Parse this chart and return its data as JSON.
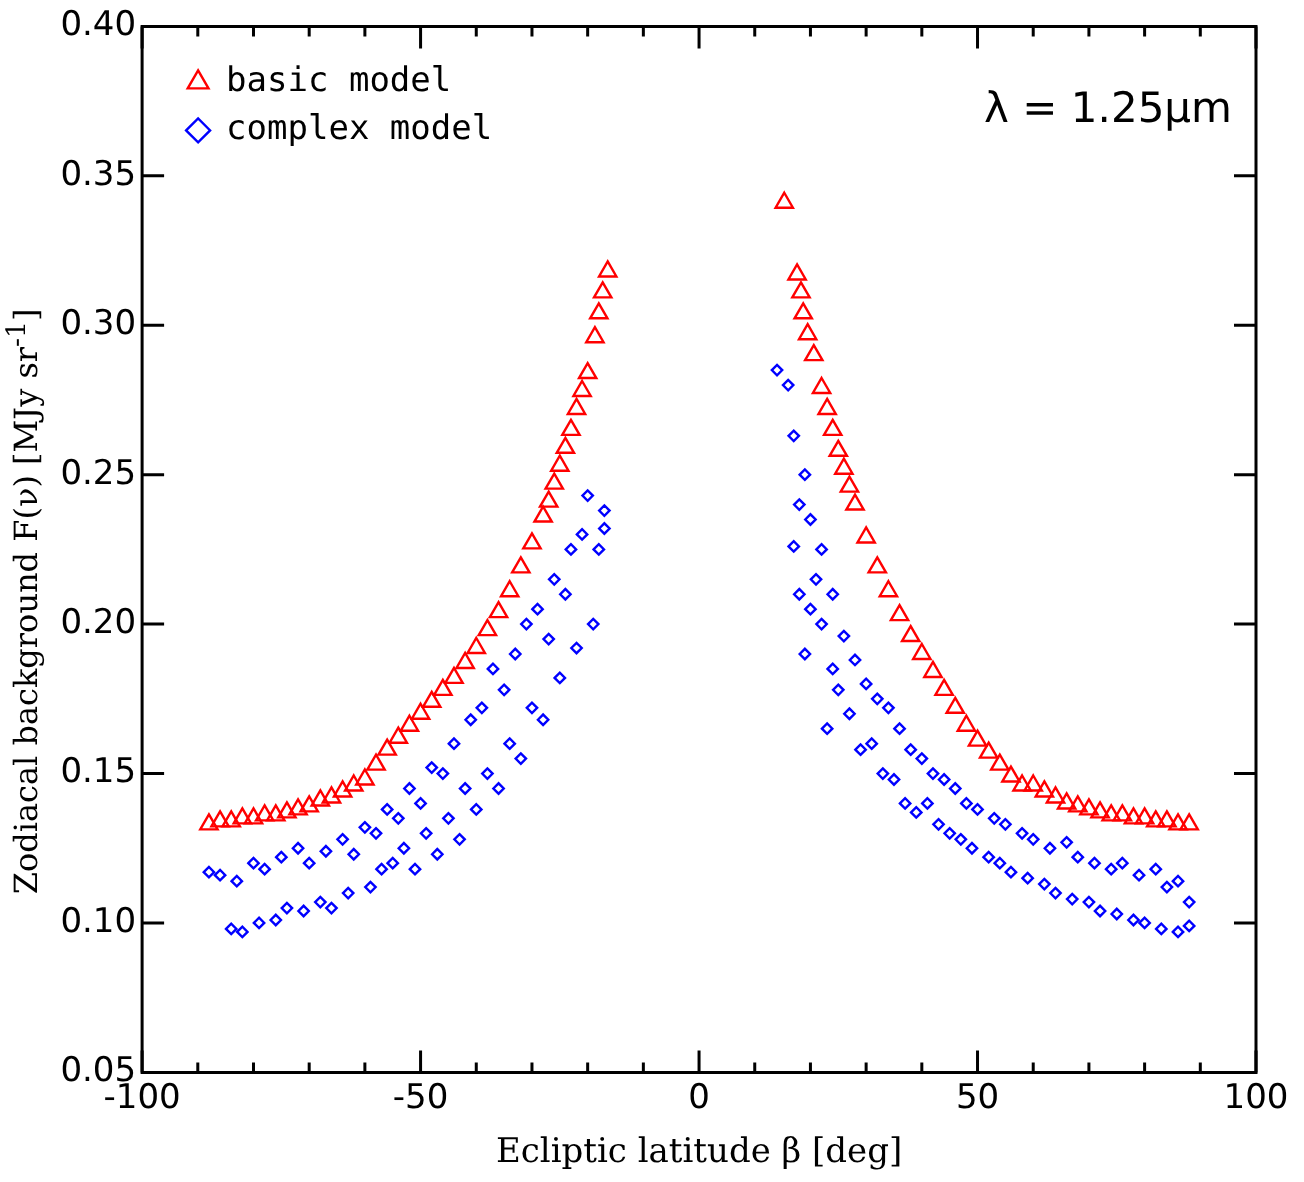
{
  "chart_data": {
    "type": "scatter",
    "xlabel": "Ecliptic latitude β [deg]",
    "ylabel": "Zodiacal background F(ν) [MJy sr$^{-1}$]",
    "xlim": [
      -100,
      100
    ],
    "xticks": [
      -100,
      -50,
      0,
      50,
      100
    ],
    "ylim": [
      0.05,
      0.4
    ],
    "yticks": [
      0.05,
      {
        "value": 0.1,
        "label": "0.10"
      },
      0.15,
      {
        "value": 0.2,
        "label": "0.20"
      },
      0.25,
      {
        "value": 0.3,
        "label": "0.30"
      },
      0.35,
      {
        "value": 0.4,
        "label": "0.40"
      }
    ],
    "legend": "top left",
    "grid": false,
    "annotations": [
      "λ = 1.25μm"
    ],
    "series": [
      {
        "name": "basic model",
        "color": "#ff0000",
        "marker": "triangle",
        "x": [
          -88,
          -86,
          -84,
          -82,
          -80,
          -78,
          -76,
          -74,
          -72,
          -70,
          -68,
          -66,
          -64,
          -62,
          -60,
          -58,
          -56,
          -54,
          -52,
          -50,
          -48,
          -46,
          -44,
          -42,
          -40,
          -38,
          -36,
          -34,
          -32,
          -30,
          -28,
          -27,
          -26,
          -25,
          -24,
          -23,
          -22,
          -21,
          -20,
          -18.7,
          -18,
          -17.3,
          -16.4,
          15.3,
          17.6,
          18.3,
          18.7,
          19.5,
          20.6,
          22,
          23,
          24,
          25,
          26,
          27,
          28,
          30,
          32,
          34,
          36,
          38,
          40,
          42,
          44,
          46,
          48,
          50,
          52,
          54,
          56,
          58,
          60,
          62,
          64,
          66,
          68,
          70,
          72,
          74,
          76,
          78,
          80,
          82,
          84,
          86,
          88
        ],
        "values": [
          0.133,
          0.134,
          0.134,
          0.135,
          0.135,
          0.136,
          0.136,
          0.137,
          0.138,
          0.139,
          0.141,
          0.142,
          0.144,
          0.146,
          0.148,
          0.153,
          0.158,
          0.162,
          0.166,
          0.17,
          0.174,
          0.178,
          0.182,
          0.187,
          0.192,
          0.198,
          0.204,
          0.211,
          0.219,
          0.227,
          0.236,
          0.241,
          0.247,
          0.253,
          0.259,
          0.265,
          0.272,
          0.278,
          0.284,
          0.296,
          0.304,
          0.311,
          0.318,
          0.341,
          0.317,
          0.311,
          0.304,
          0.297,
          0.29,
          0.279,
          0.272,
          0.265,
          0.258,
          0.252,
          0.246,
          0.24,
          0.229,
          0.219,
          0.211,
          0.203,
          0.196,
          0.19,
          0.184,
          0.178,
          0.172,
          0.166,
          0.161,
          0.157,
          0.153,
          0.149,
          0.146,
          0.146,
          0.144,
          0.142,
          0.14,
          0.139,
          0.138,
          0.137,
          0.136,
          0.136,
          0.135,
          0.135,
          0.134,
          0.134,
          0.133,
          0.133
        ]
      },
      {
        "name": "complex model",
        "color": "#0000ff",
        "marker": "diamond",
        "x": [
          -88,
          -86,
          -84,
          -83,
          -82,
          -80,
          -79,
          -78,
          -76,
          -75,
          -74,
          -72,
          -71,
          -70,
          -68,
          -67,
          -66,
          -64,
          -63,
          -62,
          -60,
          -59,
          -58,
          -57,
          -56,
          -55,
          -54,
          -53,
          -52,
          -51,
          -50,
          -49,
          -48,
          -47,
          -46,
          -45,
          -44,
          -43,
          -42,
          -41,
          -40,
          -39,
          -38,
          -37,
          -36,
          -35,
          -34,
          -33,
          -32,
          -31,
          -30,
          -29,
          -28,
          -27,
          -26,
          -25,
          -24,
          -23,
          -22,
          -21,
          -20,
          -19,
          -18,
          -17,
          -17,
          14,
          16,
          17,
          17,
          18,
          18,
          19,
          19,
          20,
          20,
          21,
          22,
          22,
          23,
          24,
          24,
          25,
          26,
          27,
          28,
          29,
          30,
          31,
          32,
          33,
          34,
          35,
          36,
          37,
          38,
          39,
          40,
          41,
          42,
          43,
          44,
          45,
          46,
          47,
          48,
          49,
          50,
          52,
          53,
          54,
          55,
          56,
          58,
          59,
          60,
          62,
          63,
          64,
          66,
          67,
          68,
          70,
          71,
          72,
          74,
          75,
          76,
          78,
          79,
          80,
          82,
          83,
          84,
          86,
          86,
          88,
          88
        ],
        "values": [
          0.117,
          0.116,
          0.098,
          0.114,
          0.097,
          0.12,
          0.1,
          0.118,
          0.101,
          0.122,
          0.105,
          0.125,
          0.104,
          0.12,
          0.107,
          0.124,
          0.105,
          0.128,
          0.11,
          0.123,
          0.132,
          0.112,
          0.13,
          0.118,
          0.138,
          0.12,
          0.135,
          0.125,
          0.145,
          0.118,
          0.14,
          0.13,
          0.152,
          0.123,
          0.15,
          0.135,
          0.16,
          0.128,
          0.145,
          0.168,
          0.138,
          0.172,
          0.15,
          0.185,
          0.145,
          0.178,
          0.16,
          0.19,
          0.155,
          0.2,
          0.172,
          0.205,
          0.168,
          0.195,
          0.215,
          0.182,
          0.21,
          0.225,
          0.192,
          0.23,
          0.243,
          0.2,
          0.225,
          0.238,
          0.232,
          0.285,
          0.28,
          0.263,
          0.226,
          0.24,
          0.21,
          0.25,
          0.19,
          0.235,
          0.205,
          0.215,
          0.2,
          0.225,
          0.165,
          0.21,
          0.185,
          0.178,
          0.196,
          0.17,
          0.188,
          0.158,
          0.18,
          0.16,
          0.175,
          0.15,
          0.172,
          0.148,
          0.165,
          0.14,
          0.158,
          0.137,
          0.155,
          0.14,
          0.15,
          0.133,
          0.148,
          0.13,
          0.145,
          0.128,
          0.14,
          0.125,
          0.138,
          0.122,
          0.135,
          0.12,
          0.133,
          0.117,
          0.13,
          0.115,
          0.128,
          0.113,
          0.125,
          0.11,
          0.127,
          0.108,
          0.122,
          0.107,
          0.12,
          0.104,
          0.118,
          0.103,
          0.12,
          0.101,
          0.116,
          0.1,
          0.118,
          0.098,
          0.112,
          0.097,
          0.114,
          0.099,
          0.107
        ]
      }
    ]
  }
}
